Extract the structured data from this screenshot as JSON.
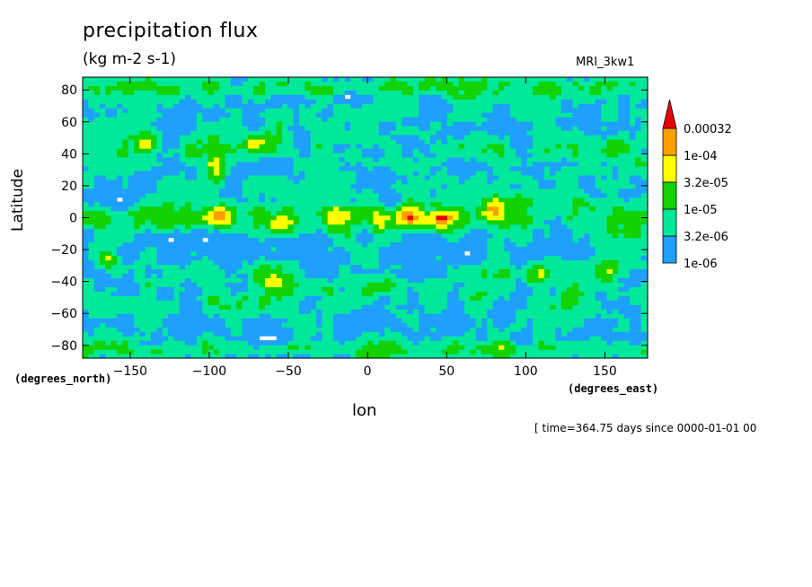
{
  "title": "precipitation flux",
  "units": "(kg m-2 s-1)",
  "model": "MRI_3kw1",
  "time_info": "[ time=364.75 days since 0000-01-01 00",
  "colors": {
    "levels": [
      "#1ea0ff",
      "#00e89a",
      "#12d200",
      "#ffff00",
      "#ffa000",
      "#e80000"
    ],
    "background": "#ffffff"
  },
  "chart_data": {
    "type": "heatmap",
    "title": "precipitation flux",
    "subtitle": "(kg m-2 s-1)",
    "xlabel": "lon",
    "ylabel": "Latitude",
    "x_units": "(degrees_east)",
    "y_units": "(degrees_north)",
    "xlim": [
      -180,
      177
    ],
    "ylim": [
      -88,
      88
    ],
    "x_ticks": [
      -150,
      -100,
      -50,
      0,
      50,
      100,
      150
    ],
    "y_ticks": [
      -80,
      -60,
      -40,
      -20,
      0,
      20,
      40,
      60,
      80
    ],
    "colorbar": {
      "labels": [
        "1e-06",
        "3.2e-06",
        "1e-05",
        "3.2e-05",
        "1e-04",
        "0.00032"
      ],
      "levels": [
        1e-06,
        3.2e-06,
        1e-05,
        3.2e-05,
        0.0001,
        0.00032
      ],
      "extend": "max"
    },
    "maxima": [
      {
        "lon": -165,
        "lat": -26
      },
      {
        "lon": -140,
        "lat": 48
      },
      {
        "lon": -95,
        "lat": 32
      },
      {
        "lon": -95,
        "lat": 2
      },
      {
        "lon": -70,
        "lat": 45
      },
      {
        "lon": -60,
        "lat": -40
      },
      {
        "lon": -55,
        "lat": -3
      },
      {
        "lon": -20,
        "lat": 0
      },
      {
        "lon": 5,
        "lat": 0
      },
      {
        "lon": 25,
        "lat": 3
      },
      {
        "lon": 45,
        "lat": -2
      },
      {
        "lon": 80,
        "lat": 5
      },
      {
        "lon": 108,
        "lat": -35
      },
      {
        "lon": 152,
        "lat": -33
      }
    ]
  }
}
